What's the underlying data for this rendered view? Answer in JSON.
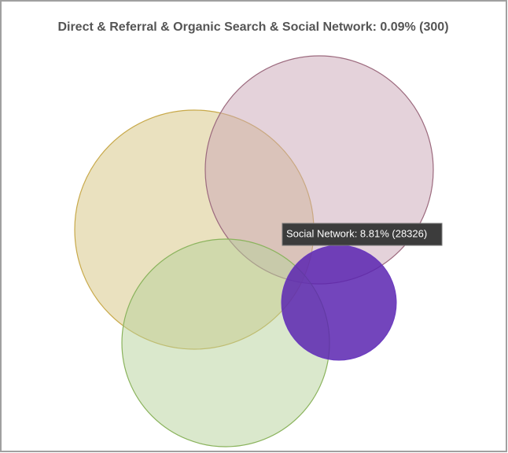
{
  "header": {
    "title": "Direct & Referral & Organic Search & Social Network: 0.09% (300)"
  },
  "tooltip": {
    "label": "Social Network: 8.81% (28326)"
  }
}
